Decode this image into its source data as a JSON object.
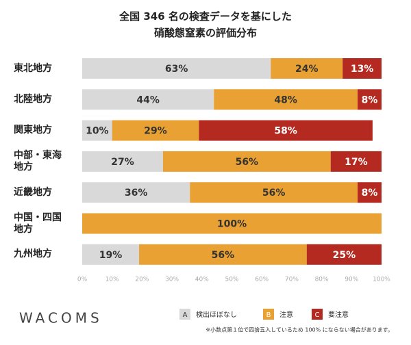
{
  "chart_data": {
    "type": "stacked_bar_horizontal",
    "title": "全国 346 名の検査データを基にした\n硝酸態窒素の評価分布",
    "categories": [
      "東北地方",
      "北陸地方",
      "関東地方",
      "中部・東海\n地方",
      "近畿地方",
      "中国・四国\n地方",
      "九州地方"
    ],
    "series": [
      {
        "key": "A",
        "name": "検出ほぼなし",
        "color": "#d9d9d9",
        "values": [
          63,
          44,
          10,
          27,
          36,
          0,
          19
        ],
        "value_labels": [
          "63%",
          "44%",
          "10%",
          "27%",
          "36%",
          null,
          "19%"
        ]
      },
      {
        "key": "B",
        "name": "注意",
        "color": "#e9a133",
        "values": [
          24,
          48,
          29,
          56,
          56,
          100,
          56
        ],
        "value_labels": [
          "24%",
          "48%",
          "29%",
          "56%",
          "56%",
          "100%",
          "56%"
        ]
      },
      {
        "key": "C",
        "name": "要注意",
        "color": "#b52a20",
        "values": [
          13,
          8,
          58,
          17,
          8,
          0,
          25
        ],
        "value_labels": [
          "13%",
          "8%",
          "58%",
          "17%",
          "8%",
          null,
          "25%"
        ]
      }
    ],
    "xlim": [
      0,
      100
    ],
    "xticks": [
      {
        "value": 0,
        "label": "0%"
      },
      {
        "value": 10,
        "label": "10%"
      },
      {
        "value": 20,
        "label": "20%"
      },
      {
        "value": 30,
        "label": "30%"
      },
      {
        "value": 40,
        "label": "40%"
      },
      {
        "value": 50,
        "label": "50%"
      },
      {
        "value": 60,
        "label": "60%"
      },
      {
        "value": 70,
        "label": "70%"
      },
      {
        "value": 80,
        "label": "80%"
      },
      {
        "value": 90,
        "label": "90%"
      },
      {
        "value": 100,
        "label": "100%"
      }
    ],
    "footnote": "※小数点第１位で四捨五入しているため 100% にならない場合があります。",
    "logo": "WACOMS"
  }
}
